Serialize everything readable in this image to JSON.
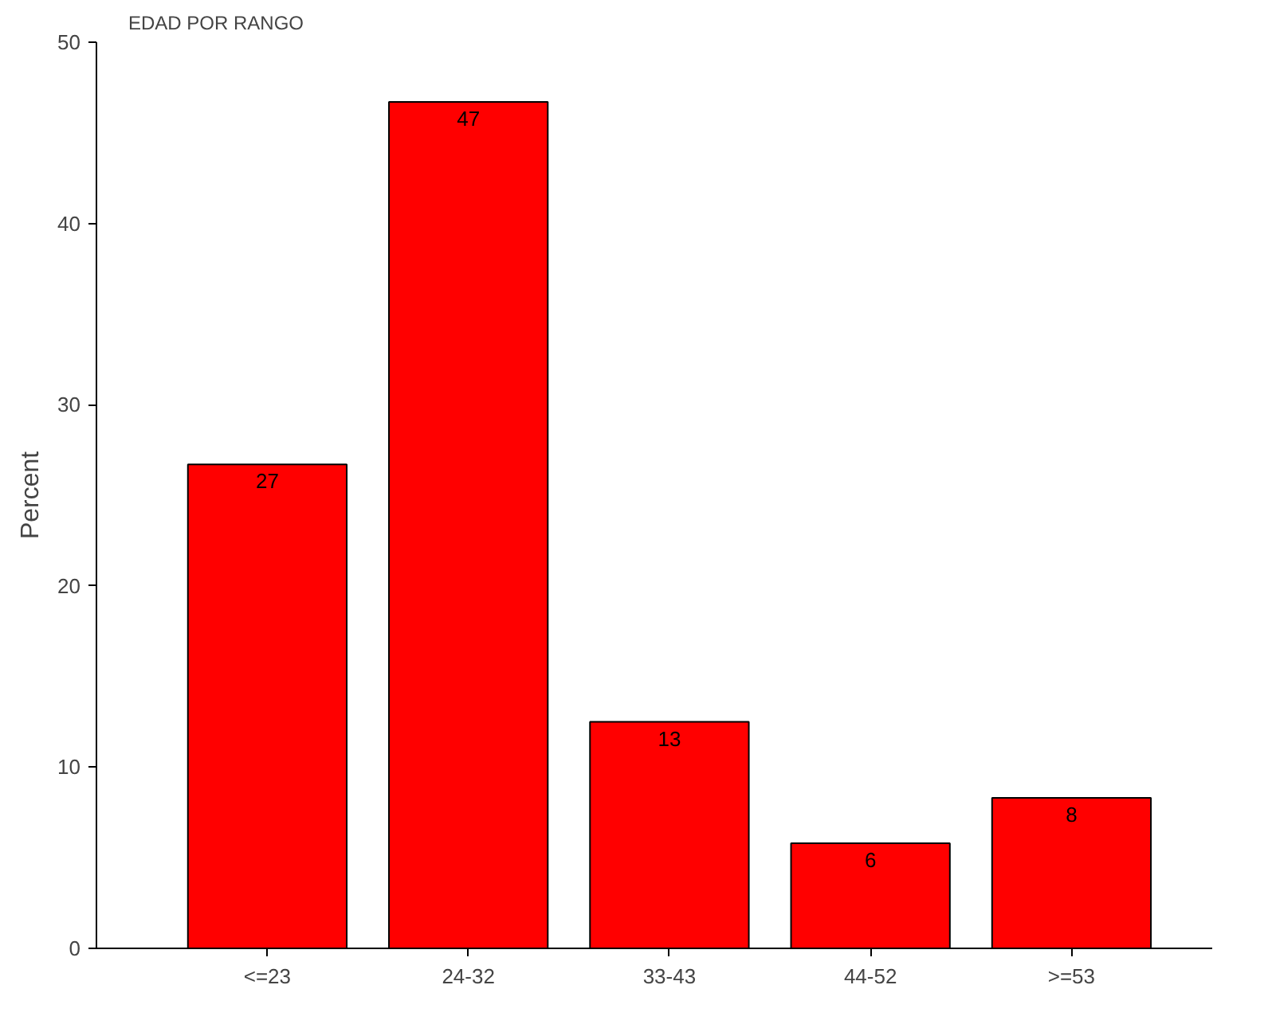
{
  "chart_data": {
    "type": "bar",
    "title": "EDAD POR RANGO",
    "ylabel": "Percent",
    "categories": [
      "<=23",
      "24-32",
      "33-43",
      "44-52",
      ">=53"
    ],
    "values": [
      26.7,
      46.7,
      12.5,
      5.8,
      8.3
    ],
    "value_labels": [
      "27",
      "47",
      "13",
      "6",
      "8"
    ],
    "color": "#ff0000",
    "ylim": [
      0,
      50
    ],
    "yticks": [
      0,
      10,
      20,
      30,
      40,
      50
    ],
    "grid": false
  }
}
